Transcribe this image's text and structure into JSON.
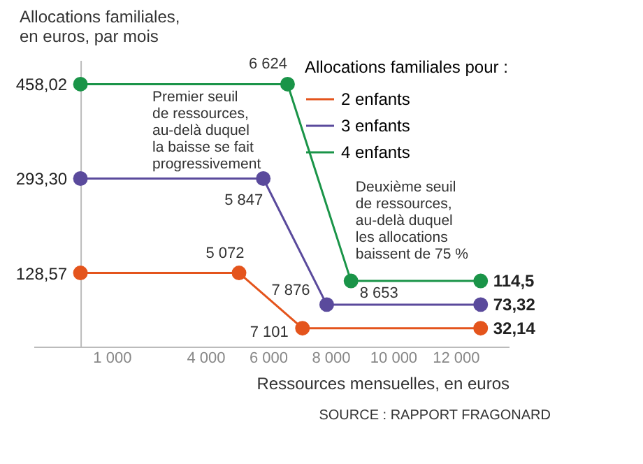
{
  "chart_data": {
    "type": "line",
    "ylabel": "Allocations familiales,\nen euros, par mois",
    "xlabel": "Ressources mensuelles, en euros",
    "legend_title": "Allocations familiales pour :",
    "legend": "top right",
    "marker": "circle",
    "line_style": "solid",
    "grid": false,
    "xlim": [
      -1500,
      13700
    ],
    "ylim": [
      0,
      500
    ],
    "xticks": [
      1000,
      4000,
      6000,
      8000,
      10000,
      12000
    ],
    "yticks": [
      {
        "value": 128.57,
        "label": "128,57"
      },
      {
        "value": 293.3,
        "label": "293,30"
      },
      {
        "value": 458.02,
        "label": "458,02"
      }
    ],
    "series": [
      {
        "name": "2 enfants",
        "color": "#e4541c",
        "x": [
          0,
          5072,
          7101,
          12800
        ],
        "values": [
          128.57,
          128.57,
          32.14,
          32.14
        ],
        "value_labels": [
          null,
          null,
          null,
          "32,14"
        ]
      },
      {
        "name": "3 enfants",
        "color": "#5a4a9c",
        "x": [
          0,
          5847,
          7876,
          12800
        ],
        "values": [
          293.3,
          293.3,
          73.32,
          73.32
        ],
        "value_labels": [
          null,
          null,
          null,
          "73,32"
        ]
      },
      {
        "name": "4 enfants",
        "color": "#1a9448",
        "x": [
          0,
          6624,
          8653,
          12800
        ],
        "values": [
          458.02,
          458.02,
          114.5,
          114.5
        ],
        "value_labels": [
          null,
          null,
          null,
          "114,5"
        ]
      }
    ],
    "annotations": [
      {
        "text": "5 072",
        "x": 5072,
        "y": 128.57
      },
      {
        "text": "7 101",
        "x": 7101,
        "y": 32.14
      },
      {
        "text": "5 847",
        "x": 5847,
        "y": 293.3
      },
      {
        "text": "7 876",
        "x": 7876,
        "y": 73.32
      },
      {
        "text": "6 624",
        "x": 6624,
        "y": 458.02
      },
      {
        "text": "8 653",
        "x": 8653,
        "y": 114.5
      },
      {
        "text": "Premier seuil\nde ressources,\nau-delà duquel\nla baisse se fait\nprogressivement"
      },
      {
        "text": "Deuxième seuil\nde ressources,\nau-delà duquel\nles allocations\nbaissent de 75 %"
      },
      "SOURCE : RAPPORT FRAGONARD"
    ]
  }
}
